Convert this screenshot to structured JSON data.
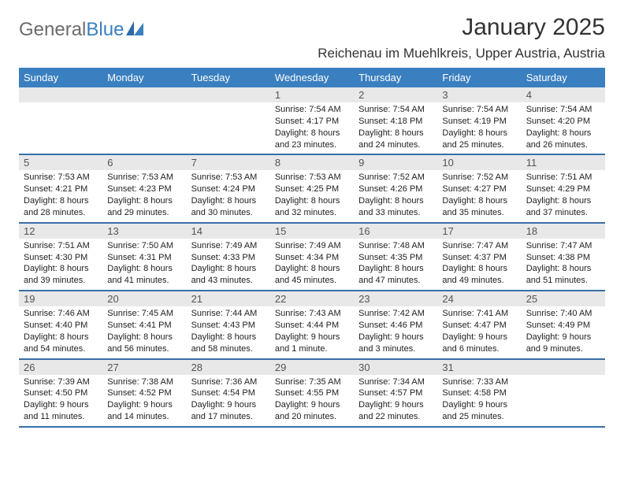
{
  "brand": {
    "part1": "General",
    "part2": "Blue"
  },
  "month_title": "January 2025",
  "location": "Reichenau im Muehlkreis, Upper Austria, Austria",
  "colors": {
    "header_bg": "#3a7fbf",
    "header_text": "#ffffff",
    "daynum_bg": "#e8e8e8",
    "daynum_text": "#555555",
    "body_text": "#222222",
    "week_border": "#3a6fa8",
    "title_text": "#333333"
  },
  "typography": {
    "title_fontsize": 30,
    "location_fontsize": 17,
    "dow_fontsize": 13,
    "daynum_fontsize": 13,
    "body_fontsize": 11
  },
  "day_labels": [
    "Sunday",
    "Monday",
    "Tuesday",
    "Wednesday",
    "Thursday",
    "Friday",
    "Saturday"
  ],
  "weeks": [
    [
      null,
      null,
      null,
      {
        "n": "1",
        "sr": "7:54 AM",
        "ss": "4:17 PM",
        "dl": "8 hours and 23 minutes."
      },
      {
        "n": "2",
        "sr": "7:54 AM",
        "ss": "4:18 PM",
        "dl": "8 hours and 24 minutes."
      },
      {
        "n": "3",
        "sr": "7:54 AM",
        "ss": "4:19 PM",
        "dl": "8 hours and 25 minutes."
      },
      {
        "n": "4",
        "sr": "7:54 AM",
        "ss": "4:20 PM",
        "dl": "8 hours and 26 minutes."
      }
    ],
    [
      {
        "n": "5",
        "sr": "7:53 AM",
        "ss": "4:21 PM",
        "dl": "8 hours and 28 minutes."
      },
      {
        "n": "6",
        "sr": "7:53 AM",
        "ss": "4:23 PM",
        "dl": "8 hours and 29 minutes."
      },
      {
        "n": "7",
        "sr": "7:53 AM",
        "ss": "4:24 PM",
        "dl": "8 hours and 30 minutes."
      },
      {
        "n": "8",
        "sr": "7:53 AM",
        "ss": "4:25 PM",
        "dl": "8 hours and 32 minutes."
      },
      {
        "n": "9",
        "sr": "7:52 AM",
        "ss": "4:26 PM",
        "dl": "8 hours and 33 minutes."
      },
      {
        "n": "10",
        "sr": "7:52 AM",
        "ss": "4:27 PM",
        "dl": "8 hours and 35 minutes."
      },
      {
        "n": "11",
        "sr": "7:51 AM",
        "ss": "4:29 PM",
        "dl": "8 hours and 37 minutes."
      }
    ],
    [
      {
        "n": "12",
        "sr": "7:51 AM",
        "ss": "4:30 PM",
        "dl": "8 hours and 39 minutes."
      },
      {
        "n": "13",
        "sr": "7:50 AM",
        "ss": "4:31 PM",
        "dl": "8 hours and 41 minutes."
      },
      {
        "n": "14",
        "sr": "7:49 AM",
        "ss": "4:33 PM",
        "dl": "8 hours and 43 minutes."
      },
      {
        "n": "15",
        "sr": "7:49 AM",
        "ss": "4:34 PM",
        "dl": "8 hours and 45 minutes."
      },
      {
        "n": "16",
        "sr": "7:48 AM",
        "ss": "4:35 PM",
        "dl": "8 hours and 47 minutes."
      },
      {
        "n": "17",
        "sr": "7:47 AM",
        "ss": "4:37 PM",
        "dl": "8 hours and 49 minutes."
      },
      {
        "n": "18",
        "sr": "7:47 AM",
        "ss": "4:38 PM",
        "dl": "8 hours and 51 minutes."
      }
    ],
    [
      {
        "n": "19",
        "sr": "7:46 AM",
        "ss": "4:40 PM",
        "dl": "8 hours and 54 minutes."
      },
      {
        "n": "20",
        "sr": "7:45 AM",
        "ss": "4:41 PM",
        "dl": "8 hours and 56 minutes."
      },
      {
        "n": "21",
        "sr": "7:44 AM",
        "ss": "4:43 PM",
        "dl": "8 hours and 58 minutes."
      },
      {
        "n": "22",
        "sr": "7:43 AM",
        "ss": "4:44 PM",
        "dl": "9 hours and 1 minute."
      },
      {
        "n": "23",
        "sr": "7:42 AM",
        "ss": "4:46 PM",
        "dl": "9 hours and 3 minutes."
      },
      {
        "n": "24",
        "sr": "7:41 AM",
        "ss": "4:47 PM",
        "dl": "9 hours and 6 minutes."
      },
      {
        "n": "25",
        "sr": "7:40 AM",
        "ss": "4:49 PM",
        "dl": "9 hours and 9 minutes."
      }
    ],
    [
      {
        "n": "26",
        "sr": "7:39 AM",
        "ss": "4:50 PM",
        "dl": "9 hours and 11 minutes."
      },
      {
        "n": "27",
        "sr": "7:38 AM",
        "ss": "4:52 PM",
        "dl": "9 hours and 14 minutes."
      },
      {
        "n": "28",
        "sr": "7:36 AM",
        "ss": "4:54 PM",
        "dl": "9 hours and 17 minutes."
      },
      {
        "n": "29",
        "sr": "7:35 AM",
        "ss": "4:55 PM",
        "dl": "9 hours and 20 minutes."
      },
      {
        "n": "30",
        "sr": "7:34 AM",
        "ss": "4:57 PM",
        "dl": "9 hours and 22 minutes."
      },
      {
        "n": "31",
        "sr": "7:33 AM",
        "ss": "4:58 PM",
        "dl": "9 hours and 25 minutes."
      },
      null
    ]
  ],
  "labels": {
    "sunrise": "Sunrise:",
    "sunset": "Sunset:",
    "daylight": "Daylight:"
  }
}
